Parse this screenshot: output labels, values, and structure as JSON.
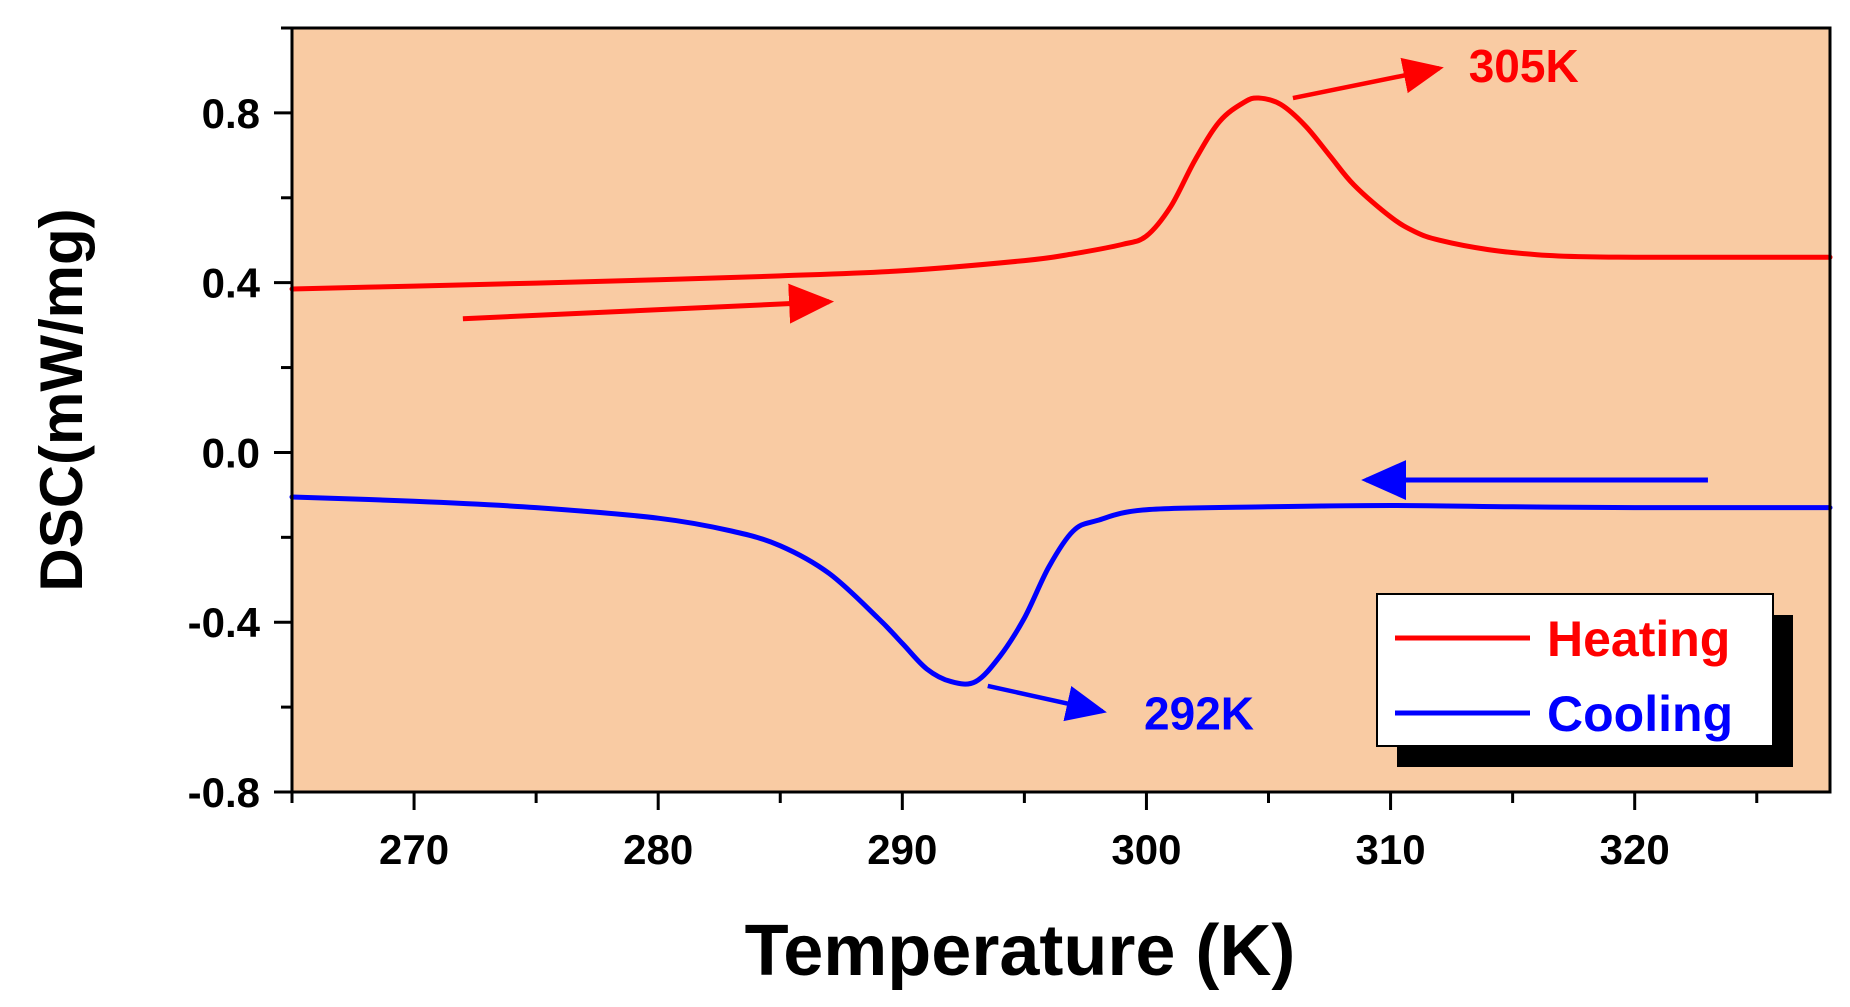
{
  "chart_data": {
    "type": "line",
    "title": "",
    "xlabel": "Temperature (K)",
    "ylabel": "DSC(mW/mg)",
    "xlim": [
      265,
      328
    ],
    "ylim": [
      -0.8,
      1.0
    ],
    "xticks": [
      270,
      280,
      290,
      300,
      310,
      320
    ],
    "yticks": [
      -0.8,
      -0.4,
      0.0,
      0.4,
      0.8
    ],
    "ytick_labels": [
      "-0.8",
      "-0.4",
      "0.0",
      "0.4",
      "0.8"
    ],
    "grid": false,
    "background_color": "#f9cba3",
    "legend_position": "bottom-right",
    "series": [
      {
        "name": "Heating",
        "color": "#ff0000",
        "x": [
          265,
          270,
          275,
          280,
          285,
          290,
          295,
          297,
          299,
          300,
          301,
          302,
          303,
          304,
          304.6,
          305.5,
          306.5,
          307.5,
          308.5,
          310,
          311,
          312,
          314,
          316,
          318,
          320,
          325,
          328
        ],
        "y": [
          0.385,
          0.392,
          0.399,
          0.407,
          0.416,
          0.428,
          0.452,
          0.468,
          0.49,
          0.51,
          0.58,
          0.69,
          0.78,
          0.825,
          0.835,
          0.82,
          0.77,
          0.7,
          0.63,
          0.555,
          0.52,
          0.5,
          0.478,
          0.466,
          0.461,
          0.46,
          0.46,
          0.46
        ]
      },
      {
        "name": "Cooling",
        "color": "#0000ff",
        "x": [
          265,
          270,
          275,
          280,
          283,
          285,
          287,
          289,
          290,
          291,
          292,
          293,
          294,
          295,
          296,
          297,
          298,
          300,
          305,
          310,
          315,
          320,
          328
        ],
        "y": [
          -0.105,
          -0.115,
          -0.13,
          -0.155,
          -0.185,
          -0.22,
          -0.285,
          -0.39,
          -0.45,
          -0.51,
          -0.54,
          -0.54,
          -0.48,
          -0.39,
          -0.27,
          -0.185,
          -0.16,
          -0.135,
          -0.128,
          -0.125,
          -0.128,
          -0.13,
          -0.13
        ]
      }
    ],
    "annotations": [
      {
        "text": "305K",
        "color": "#ff0000",
        "point_x": 306.0,
        "point_y": 0.835,
        "label_x": 312.3,
        "label_y": 0.91,
        "arrow_end_x": 312.0,
        "arrow_end_y": 0.905
      },
      {
        "text": "292K",
        "color": "#0000ff",
        "point_x": 293.5,
        "point_y": -0.55,
        "label_x": 299.0,
        "label_y": -0.615,
        "arrow_end_x": 298.2,
        "arrow_end_y": -0.61
      }
    ],
    "direction_arrows": [
      {
        "series": "Heating",
        "color": "#ff0000",
        "x1": 272.0,
        "y1": 0.315,
        "x2": 287.0,
        "y2": 0.355
      },
      {
        "series": "Cooling",
        "color": "#0000ff",
        "x1": 323.0,
        "y1": -0.065,
        "x2": 309.0,
        "y2": -0.065
      }
    ]
  }
}
